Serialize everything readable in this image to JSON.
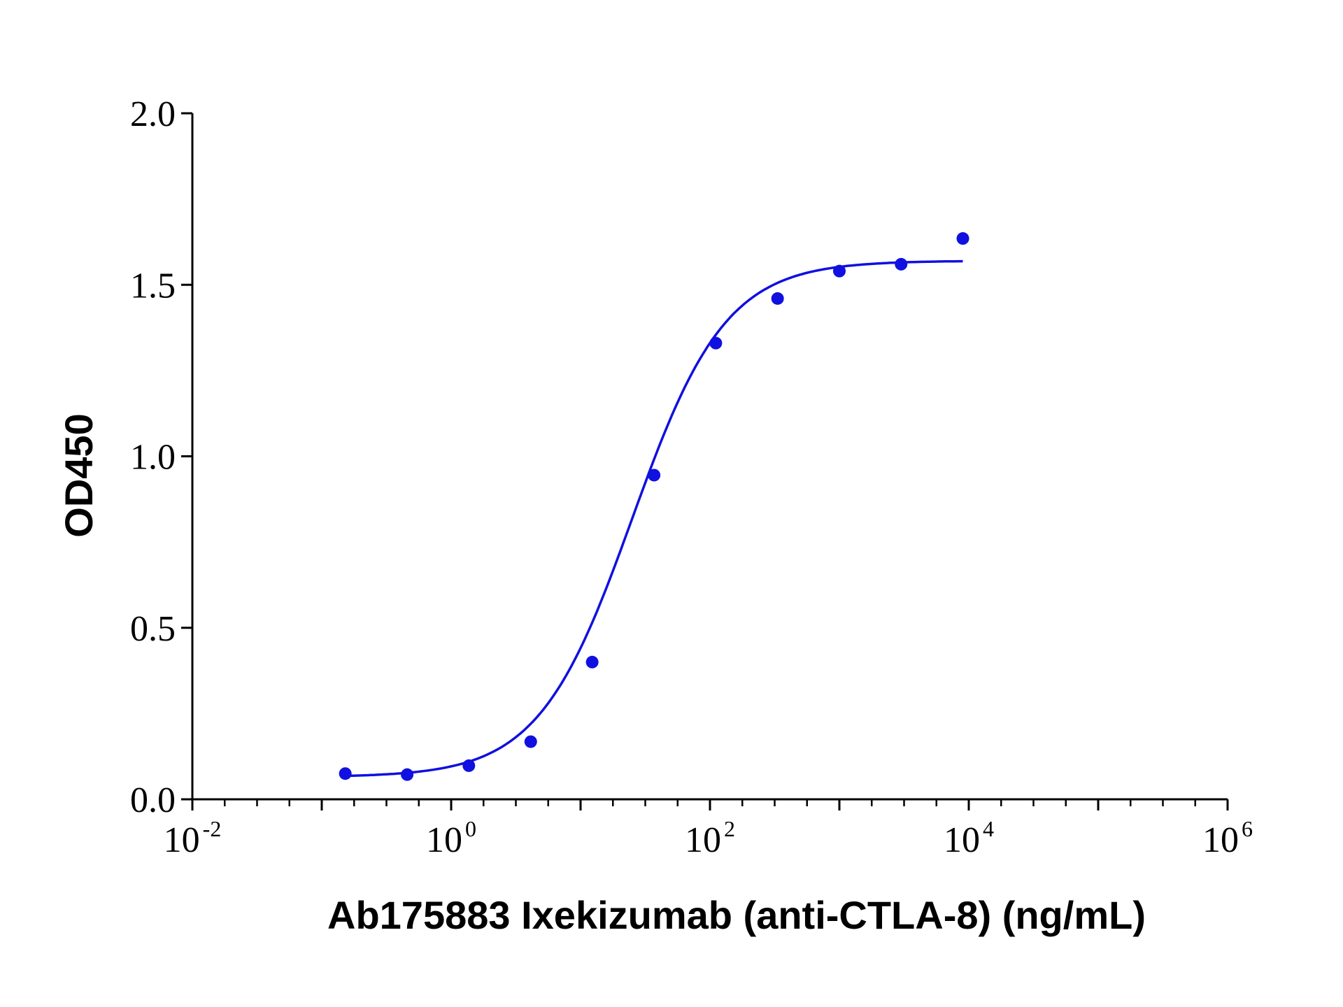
{
  "chart_data": {
    "type": "scatter",
    "xlabel": "Ab175883 Ixekizumab (anti-CTLA-8) (ng/mL)",
    "ylabel": "OD450",
    "x_scale": "log10",
    "xlim": [
      0.01,
      1000000
    ],
    "ylim": [
      0,
      2.0
    ],
    "y_ticks": [
      "0.0",
      "0.5",
      "1.0",
      "1.5",
      "2.0"
    ],
    "x_ticks": [
      {
        "base": "10",
        "exp": "-2",
        "value": 0.01
      },
      {
        "base": "10",
        "exp": "0",
        "value": 1
      },
      {
        "base": "10",
        "exp": "2",
        "value": 100
      },
      {
        "base": "10",
        "exp": "4",
        "value": 10000
      },
      {
        "base": "10",
        "exp": "6",
        "value": 1000000
      }
    ],
    "series": [
      {
        "color": "#1010e0",
        "points": [
          {
            "x": 0.152,
            "y": 0.075
          },
          {
            "x": 0.457,
            "y": 0.072
          },
          {
            "x": 1.37,
            "y": 0.098
          },
          {
            "x": 4.12,
            "y": 0.168
          },
          {
            "x": 12.3,
            "y": 0.4
          },
          {
            "x": 37.0,
            "y": 0.945
          },
          {
            "x": 111,
            "y": 1.33
          },
          {
            "x": 333,
            "y": 1.46
          },
          {
            "x": 1000,
            "y": 1.54
          },
          {
            "x": 3000,
            "y": 1.56
          },
          {
            "x": 9000,
            "y": 1.635
          }
        ],
        "fit": {
          "type": "4PL",
          "bottom": 0.065,
          "top": 1.57,
          "ec50": 25,
          "hill": 1.2,
          "x_range": [
            0.152,
            9000
          ]
        }
      }
    ],
    "grid": false,
    "legend": "none"
  }
}
